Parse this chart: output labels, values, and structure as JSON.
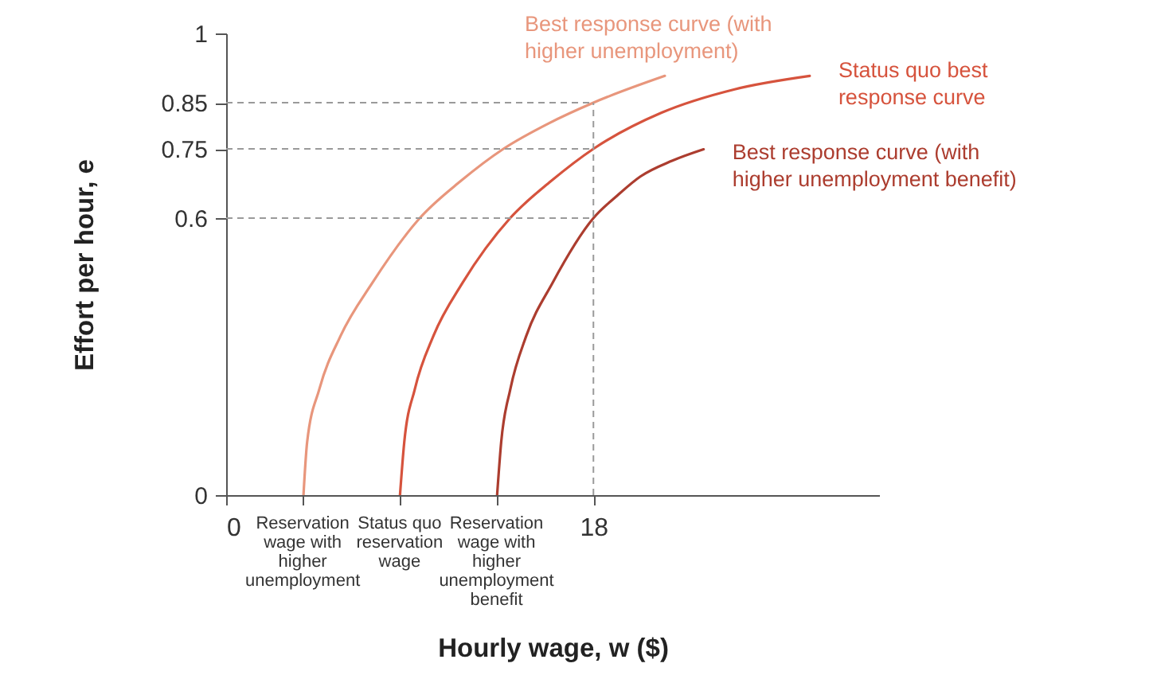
{
  "chart_data": {
    "type": "line",
    "xlabel": "Hourly wage, w ($)",
    "ylabel": "Effort per hour, e",
    "xlim": [
      0,
      32
    ],
    "ylim": [
      0,
      1
    ],
    "xticks": [
      0,
      {
        "value": 3.75,
        "label": null
      },
      {
        "value": 8.5,
        "label": null
      },
      {
        "value": 13.25,
        "label": null
      },
      18
    ],
    "yticks": [
      0,
      0.6,
      0.75,
      0.85,
      1
    ],
    "annotations": [
      {
        "text": "Reservation wage with higher unemployment",
        "x": 3.75,
        "y": 0
      },
      {
        "text": "Status quo reservation wage",
        "x": 8.5,
        "y": 0
      },
      {
        "text": "Reservation wage with higher unemployment benefit",
        "x": 13.25,
        "y": 0
      }
    ],
    "grid": false,
    "legend": false,
    "marker": "none",
    "line_style": "solid",
    "ref_lines": [
      {
        "axis": "y",
        "value": 0.85,
        "color": "#9a9a9a",
        "line_style": "dashed"
      },
      {
        "axis": "y",
        "value": 0.75,
        "color": "#9a9a9a",
        "line_style": "dashed"
      },
      {
        "axis": "y",
        "value": 0.6,
        "color": "#9a9a9a",
        "line_style": "dashed"
      },
      {
        "axis": "x",
        "value": 18,
        "color": "#9a9a9a",
        "line_style": "dashed"
      }
    ],
    "series": [
      {
        "name": "Best response curve (with higher unemployment)",
        "color": "#e8967c",
        "x": [
          3.79,
          3.97,
          4.57,
          5.61,
          7.17,
          9.49,
          11.49,
          13.59,
          15.8,
          18.0,
          21.5
        ],
        "values": [
          0,
          0.115,
          0.23,
          0.345,
          0.46,
          0.6,
          0.68,
          0.75,
          0.805,
          0.85,
          0.908
        ]
      },
      {
        "name": "Status quo best response curve",
        "color": "#d6533d",
        "x": [
          8.52,
          8.73,
          9.25,
          10.16,
          11.59,
          13.92,
          15.92,
          18.0,
          21.32,
          24.92,
          28.6
        ],
        "values": [
          0,
          0.115,
          0.23,
          0.345,
          0.46,
          0.6,
          0.68,
          0.75,
          0.828,
          0.879,
          0.908
        ]
      },
      {
        "name": "Best response curve (with higher unemployment benefit)",
        "color": "#ac3d2f",
        "x": [
          13.28,
          13.48,
          13.93,
          14.71,
          16.0,
          18.0,
          19.2,
          20.3,
          21.85,
          23.4
        ],
        "values": [
          0,
          0.115,
          0.23,
          0.345,
          0.46,
          0.6,
          0.65,
          0.69,
          0.724,
          0.749
        ]
      }
    ]
  }
}
